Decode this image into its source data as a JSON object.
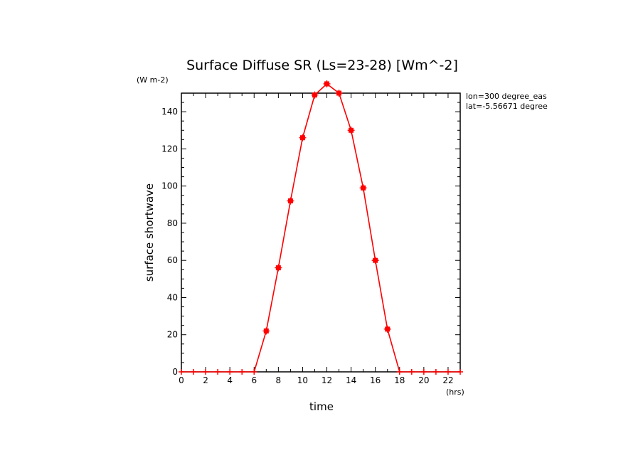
{
  "chart_data": {
    "type": "line",
    "title": "Surface Diffuse SR (Ls=23-28) [Wm^-2]",
    "units_label": "(W m-2)",
    "xlabel": "time",
    "x_units": "(hrs)",
    "ylabel": "surface shortwave",
    "xlim": [
      0,
      23
    ],
    "ylim": [
      0,
      150
    ],
    "x_ticks": [
      0,
      2,
      4,
      6,
      8,
      10,
      12,
      14,
      16,
      18,
      20,
      22
    ],
    "y_ticks": [
      0,
      20,
      40,
      60,
      80,
      100,
      120,
      140
    ],
    "annotations": [
      "lon=300 degree_eas",
      "lat=-5.56671 degree"
    ],
    "series": [
      {
        "color": "#ff0000",
        "x": [
          0,
          1,
          2,
          3,
          4,
          5,
          6,
          7,
          8,
          9,
          10,
          11,
          12,
          13,
          14,
          15,
          16,
          17,
          18,
          19,
          20,
          21,
          22,
          23
        ],
        "values": [
          0,
          0,
          0,
          0,
          0,
          0,
          0,
          22,
          56,
          92,
          126,
          149,
          155,
          150,
          130,
          99,
          60,
          23,
          0,
          0,
          0,
          0,
          0,
          0
        ]
      }
    ]
  }
}
